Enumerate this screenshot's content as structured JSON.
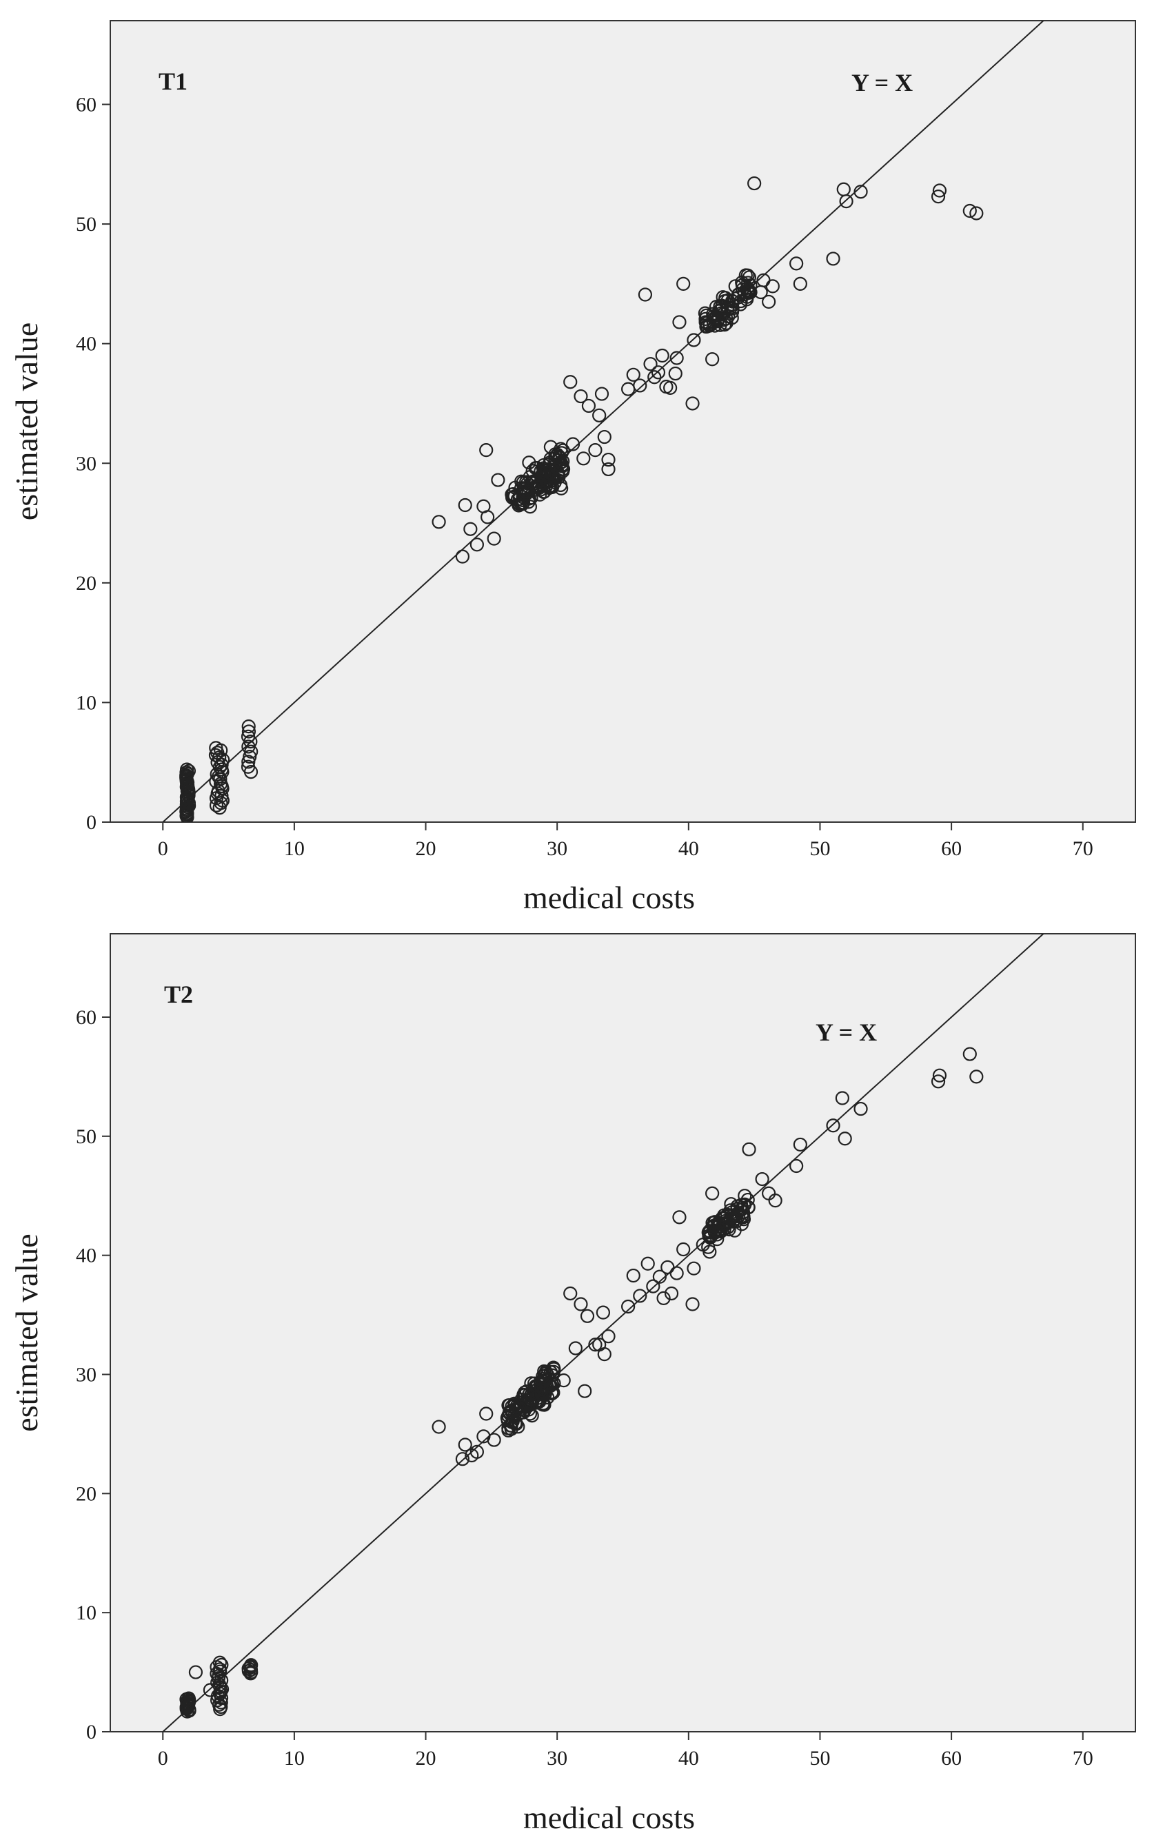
{
  "chart_data": [
    {
      "type": "scatter",
      "panel_label": "T1",
      "reference_line_label": "Y = X",
      "xlabel": "medical costs",
      "ylabel": "estimated value",
      "xlim": [
        -4,
        74
      ],
      "ylim": [
        0,
        67
      ],
      "x_ticks": [
        0,
        10,
        20,
        30,
        40,
        50,
        60,
        70
      ],
      "y_ticks": [
        0,
        10,
        20,
        30,
        40,
        50,
        60
      ],
      "reference_line": {
        "slope": 1,
        "intercept": 0
      },
      "clusters": [
        {
          "x_center": 1.9,
          "x_spread": 0.12,
          "y_min": 0.4,
          "y_max": 4.4,
          "count": 34
        },
        {
          "x_center": 4.3,
          "x_spread": 0.3,
          "y_min": 1.2,
          "y_max": 6.2,
          "count": 26
        },
        {
          "x_center": 6.6,
          "x_spread": 0.12,
          "y_min": 4.2,
          "y_max": 8.0,
          "count": 10
        },
        {
          "x_center": 28.5,
          "x_spread": 2.0,
          "y_center": 28.3,
          "y_spread": 1.4,
          "count": 120
        },
        {
          "x_center": 43.0,
          "x_spread": 1.8,
          "y_center": 43.2,
          "y_spread": 1.1,
          "count": 70
        }
      ],
      "points": [
        [
          21,
          25.1
        ],
        [
          22.8,
          22.2
        ],
        [
          23,
          26.5
        ],
        [
          23.4,
          24.5
        ],
        [
          23.9,
          23.2
        ],
        [
          24.4,
          26.4
        ],
        [
          24.6,
          31.1
        ],
        [
          24.7,
          25.5
        ],
        [
          25.2,
          23.7
        ],
        [
          25.5,
          28.6
        ],
        [
          31,
          36.8
        ],
        [
          31.2,
          31.6
        ],
        [
          31.8,
          35.6
        ],
        [
          32,
          30.4
        ],
        [
          32.4,
          34.8
        ],
        [
          32.9,
          31.1
        ],
        [
          33.2,
          34.0
        ],
        [
          33.6,
          32.2
        ],
        [
          33.9,
          30.3
        ],
        [
          33.9,
          29.5
        ],
        [
          33.4,
          35.8
        ],
        [
          35.4,
          36.2
        ],
        [
          35.8,
          37.4
        ],
        [
          36.3,
          36.5
        ],
        [
          36.7,
          44.1
        ],
        [
          37.1,
          38.3
        ],
        [
          37.4,
          37.2
        ],
        [
          37.7,
          37.6
        ],
        [
          38,
          39.0
        ],
        [
          38.3,
          36.4
        ],
        [
          38.6,
          36.3
        ],
        [
          39,
          37.5
        ],
        [
          39.1,
          38.8
        ],
        [
          39.3,
          41.8
        ],
        [
          39.6,
          45.0
        ],
        [
          40.3,
          35.0
        ],
        [
          40.4,
          40.3
        ],
        [
          41.3,
          41.8
        ],
        [
          41.8,
          38.7
        ],
        [
          42,
          41.5
        ],
        [
          44.5,
          45.7
        ],
        [
          45,
          53.4
        ],
        [
          45.5,
          44.3
        ],
        [
          45.7,
          45.3
        ],
        [
          46.1,
          43.5
        ],
        [
          46.4,
          44.8
        ],
        [
          48.2,
          46.7
        ],
        [
          48.5,
          45.0
        ],
        [
          51,
          47.1
        ],
        [
          51.8,
          52.9
        ],
        [
          52,
          51.9
        ],
        [
          53.1,
          52.7
        ],
        [
          59,
          52.3
        ],
        [
          59.1,
          52.8
        ],
        [
          61.4,
          51.1
        ],
        [
          61.9,
          50.9
        ]
      ]
    },
    {
      "type": "scatter",
      "panel_label": "T2",
      "reference_line_label": "Y = X",
      "xlabel": "medical costs",
      "ylabel": "estimated value",
      "xlim": [
        -4,
        74
      ],
      "ylim": [
        0,
        67
      ],
      "x_ticks": [
        0,
        10,
        20,
        30,
        40,
        50,
        60,
        70
      ],
      "y_ticks": [
        0,
        10,
        20,
        30,
        40,
        50,
        60
      ],
      "reference_line": {
        "slope": 1,
        "intercept": 0
      },
      "clusters": [
        {
          "x_center": 1.9,
          "x_spread": 0.12,
          "y_min": 1.7,
          "y_max": 2.8,
          "count": 16
        },
        {
          "x_center": 4.3,
          "x_spread": 0.2,
          "y_min": 1.9,
          "y_max": 5.8,
          "count": 22
        },
        {
          "x_center": 6.6,
          "x_spread": 0.12,
          "y_min": 4.9,
          "y_max": 5.6,
          "count": 8
        },
        {
          "x_center": 28.0,
          "x_spread": 1.8,
          "y_center": 28.0,
          "y_spread": 1.2,
          "count": 120
        },
        {
          "x_center": 43.0,
          "x_spread": 1.6,
          "y_center": 43.0,
          "y_spread": 0.9,
          "count": 70
        }
      ],
      "points": [
        [
          2.5,
          5.0
        ],
        [
          3.6,
          3.5
        ],
        [
          21,
          25.6
        ],
        [
          22.8,
          22.9
        ],
        [
          23,
          24.1
        ],
        [
          23.5,
          23.2
        ],
        [
          23.9,
          23.5
        ],
        [
          24.4,
          24.8
        ],
        [
          24.6,
          26.7
        ],
        [
          25.2,
          24.5
        ],
        [
          30.5,
          29.5
        ],
        [
          31,
          36.8
        ],
        [
          31.4,
          32.2
        ],
        [
          31.8,
          35.9
        ],
        [
          32.1,
          28.6
        ],
        [
          32.3,
          34.9
        ],
        [
          32.9,
          32.5
        ],
        [
          33.2,
          32.5
        ],
        [
          33.5,
          35.2
        ],
        [
          33.6,
          31.7
        ],
        [
          33.9,
          33.2
        ],
        [
          35.4,
          35.7
        ],
        [
          35.8,
          38.3
        ],
        [
          36.3,
          36.6
        ],
        [
          36.9,
          39.3
        ],
        [
          37.3,
          37.4
        ],
        [
          37.8,
          38.2
        ],
        [
          38.1,
          36.4
        ],
        [
          38.4,
          39.0
        ],
        [
          38.7,
          36.8
        ],
        [
          39.1,
          38.5
        ],
        [
          39.3,
          43.2
        ],
        [
          39.6,
          40.5
        ],
        [
          40.3,
          35.9
        ],
        [
          40.4,
          38.9
        ],
        [
          41.1,
          40.9
        ],
        [
          41.6,
          40.3
        ],
        [
          41.8,
          45.2
        ],
        [
          42,
          41.9
        ],
        [
          44.6,
          48.9
        ],
        [
          45.6,
          46.4
        ],
        [
          46.1,
          45.2
        ],
        [
          46.6,
          44.6
        ],
        [
          48.2,
          47.5
        ],
        [
          48.5,
          49.3
        ],
        [
          51,
          50.9
        ],
        [
          51.7,
          53.2
        ],
        [
          51.9,
          49.8
        ],
        [
          53.1,
          52.3
        ],
        [
          59,
          54.6
        ],
        [
          59.1,
          55.1
        ],
        [
          61.4,
          56.9
        ],
        [
          61.9,
          55.0
        ]
      ]
    }
  ]
}
